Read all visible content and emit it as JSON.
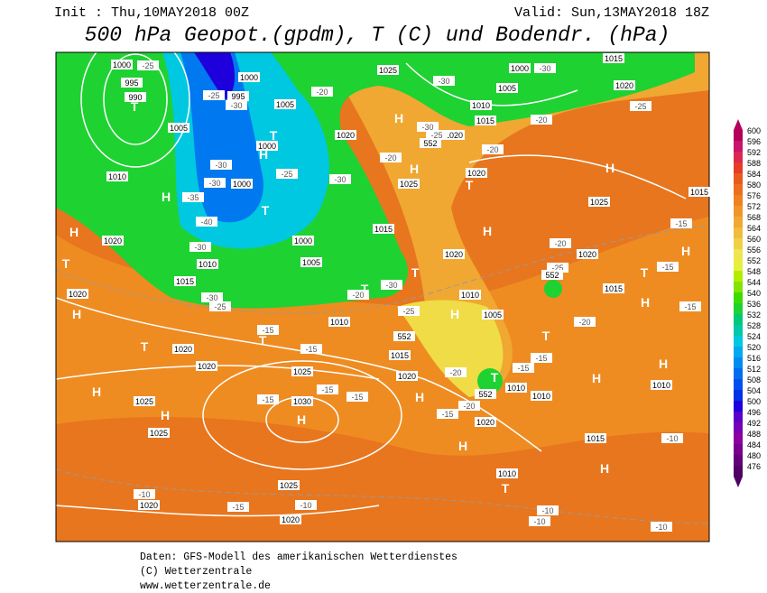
{
  "header": {
    "init": "Init : Thu,10MAY2018 00Z",
    "valid": "Valid: Sun,13MAY2018 18Z",
    "title": "500 hPa Geopot.(gpdm), T (C) und Bodendr. (hPa)"
  },
  "map": {
    "pressure_labels": [
      1000,
      995,
      990,
      1000,
      995,
      1005,
      1025,
      1000,
      1015,
      1005,
      1020,
      1010,
      1015,
      1020,
      1005,
      1020,
      1000,
      1010,
      1000,
      1025,
      1020,
      1025,
      1015,
      1020,
      1000,
      1015,
      1005,
      1010,
      1020,
      1020,
      1015,
      1020,
      1010,
      1015,
      1005,
      1010,
      1020,
      1015,
      1020,
      1020,
      1025,
      1010,
      1010,
      1010,
      1025,
      1030,
      1020,
      1025,
      1015,
      1010,
      1025,
      1020,
      1020
    ],
    "temperature_labels": [
      -25,
      -30,
      -25,
      -30,
      -20,
      -30,
      -25,
      -30,
      -25,
      -20,
      -20,
      -20,
      -30,
      -25,
      -35,
      -30,
      -30,
      -40,
      -30,
      -20,
      -25,
      -15,
      -20,
      -30,
      -30,
      -25,
      -15,
      -20,
      -15,
      -15,
      -25,
      -15,
      -15,
      -20,
      -15,
      -15,
      -15,
      -15,
      -20,
      -15,
      -10,
      -10,
      -15,
      -10,
      -10,
      -10,
      -10
    ],
    "height_labels": [
      552,
      552,
      552,
      552
    ],
    "pressure_centers": [
      "T",
      "H",
      "H",
      "T",
      "H",
      "T",
      "H",
      "H",
      "H",
      "T",
      "H",
      "T",
      "H",
      "T",
      "H",
      "H",
      "H",
      "T",
      "H",
      "T",
      "T",
      "H",
      "T",
      "H",
      "H",
      "T",
      "T",
      "H",
      "H",
      "H",
      "H",
      "T"
    ]
  },
  "colorbar": {
    "levels": [
      600,
      596,
      592,
      588,
      584,
      580,
      576,
      572,
      568,
      564,
      560,
      556,
      552,
      548,
      544,
      540,
      536,
      532,
      528,
      524,
      520,
      516,
      512,
      508,
      504,
      500,
      496,
      492,
      488,
      484,
      480,
      476
    ],
    "colors": [
      "#b4005a",
      "#c8146e",
      "#dc2850",
      "#e63c28",
      "#e85a1e",
      "#ec6e1e",
      "#ee821e",
      "#f09628",
      "#f0a832",
      "#f0bc3c",
      "#f0d046",
      "#f0e450",
      "#e6f03c",
      "#b4ec00",
      "#82e400",
      "#3cdc00",
      "#1ed232",
      "#00c878",
      "#00c8aa",
      "#00c8e0",
      "#00aaf0",
      "#008cf0",
      "#006ef0",
      "#0050f0",
      "#0032e6",
      "#1e00dc",
      "#5a00c8",
      "#7800b4",
      "#8c00a0",
      "#78008c",
      "#640078",
      "#500064"
    ]
  },
  "footer": [
    "Daten: GFS-Modell des amerikanischen Wetterdienstes",
    "(C) Wetterzentrale",
    "www.wetterzentrale.de"
  ]
}
